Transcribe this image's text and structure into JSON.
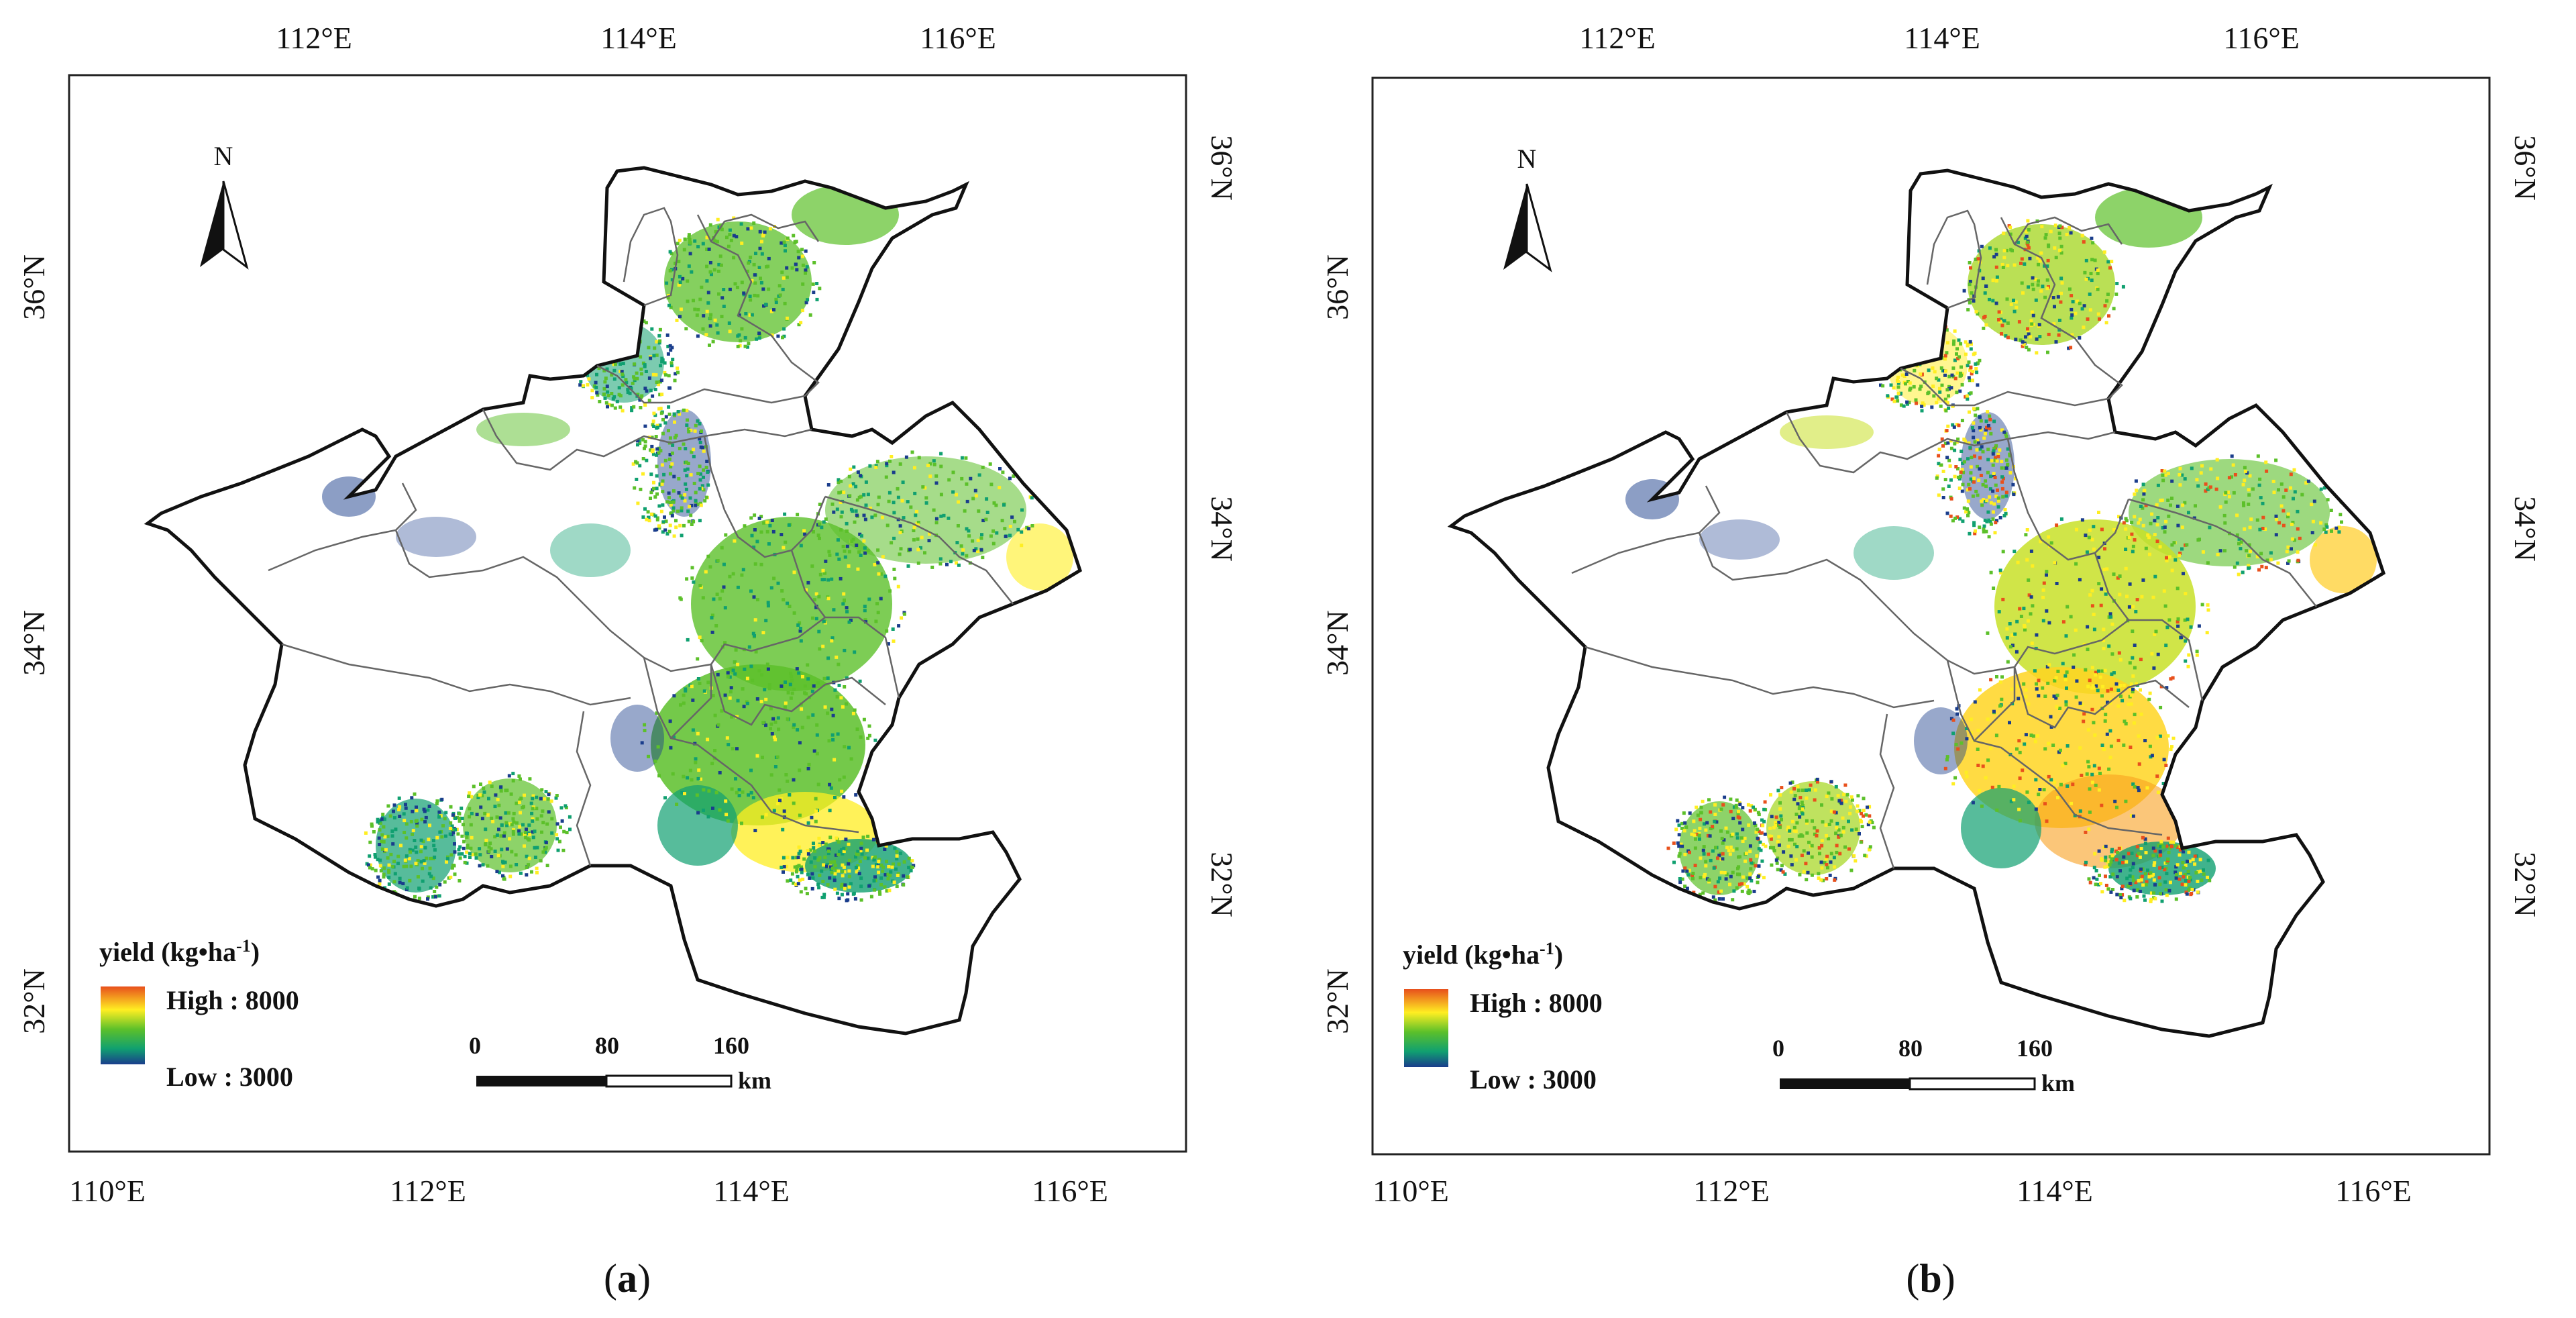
{
  "figure": {
    "panels": [
      {
        "id": "a",
        "caption_letter": "a",
        "legend": {
          "title": "yield (kg•ha",
          "title_sup": "-1",
          "title_close": ")",
          "high": "High : 8000",
          "low": "Low : 3000"
        },
        "scale_bar": {
          "labels": [
            "0",
            "80",
            "160"
          ],
          "unit": "km"
        },
        "north_label": "N",
        "top_ticks": [
          "112°E",
          "114°E",
          "116°E"
        ],
        "bottom_ticks": [
          "110°E",
          "112°E",
          "114°E",
          "116°E"
        ],
        "left_ticks": [
          "36°N",
          "34°N",
          "32°N"
        ],
        "right_ticks": [
          "36°N",
          "34°N",
          "32°N"
        ]
      },
      {
        "id": "b",
        "caption_letter": "b",
        "legend": {
          "title": "yield (kg•ha",
          "title_sup": "-1",
          "title_close": ")",
          "high": "High : 8000",
          "low": "Low : 3000"
        },
        "scale_bar": {
          "labels": [
            "0",
            "80",
            "160"
          ],
          "unit": "km"
        },
        "north_label": "N",
        "top_ticks": [
          "112°E",
          "114°E",
          "116°E"
        ],
        "bottom_ticks": [
          "110°E",
          "112°E",
          "114°E",
          "116°E"
        ],
        "left_ticks": [
          "36°N",
          "34°N",
          "32°N"
        ],
        "right_ticks": [
          "36°N",
          "34°N",
          "32°N"
        ]
      }
    ],
    "colors": {
      "high": "#e8501c",
      "mid_high": "#ffee22",
      "mid": "#5cc02a",
      "mid_low": "#10a070",
      "low": "#1a3d8c",
      "border": "#111111",
      "inner_border": "#555555"
    }
  }
}
